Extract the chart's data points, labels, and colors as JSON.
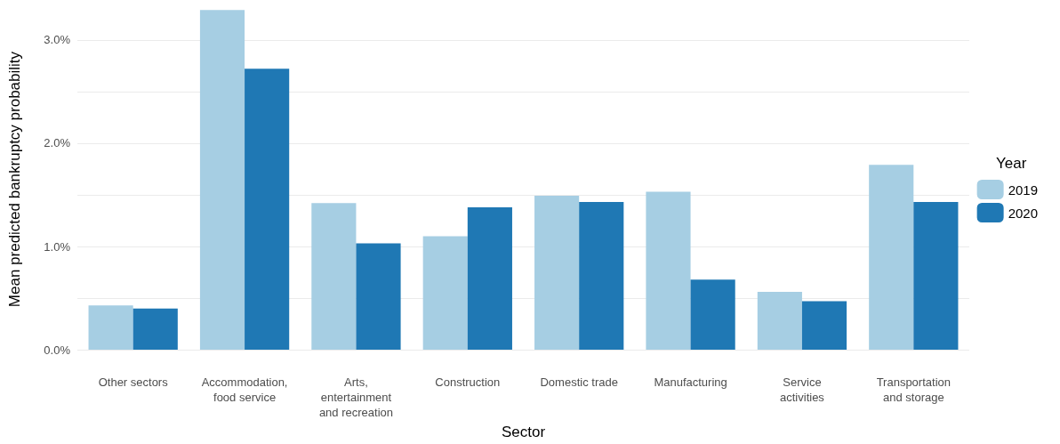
{
  "chart_data": {
    "type": "bar",
    "xlabel": "Sector",
    "ylabel": "Mean predicted bankruptcy probability",
    "legend_title": "Year",
    "legend": "right",
    "categories": [
      "Other sectors",
      "Accommodation,\nfood service",
      "Arts,\nentertainment\nand recreation",
      "Construction",
      "Domestic trade",
      "Manufacturing",
      "Service\nactivities",
      "Transportation\nand storage"
    ],
    "series": [
      {
        "name": "2019",
        "color": "#a6cee3",
        "values": [
          0.43,
          3.29,
          1.42,
          1.1,
          1.49,
          1.53,
          0.56,
          1.79
        ]
      },
      {
        "name": "2020",
        "color": "#1f78b4",
        "values": [
          0.4,
          2.72,
          1.03,
          1.38,
          1.43,
          0.68,
          0.47,
          1.43
        ]
      }
    ],
    "ylim": [
      0,
      3.3
    ],
    "yticks": [
      {
        "value": 0,
        "label": "0.0%"
      },
      {
        "value": 0.5,
        "label": null
      },
      {
        "value": 1,
        "label": "1.0%"
      },
      {
        "value": 1.5,
        "label": null
      },
      {
        "value": 2,
        "label": "2.0%"
      },
      {
        "value": 2.5,
        "label": null
      },
      {
        "value": 3,
        "label": "3.0%"
      }
    ],
    "grid": "y"
  }
}
